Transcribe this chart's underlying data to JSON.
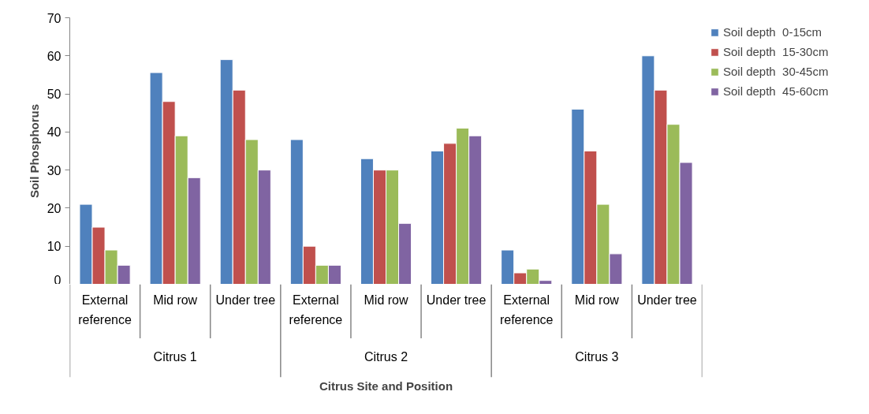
{
  "chart_data": {
    "type": "bar",
    "categories": [
      "External reference",
      "Mid row",
      "Under tree",
      "External reference",
      "Mid row",
      "Under tree",
      "External reference",
      "Mid row",
      "Under tree"
    ],
    "series": [
      {
        "name": "Soil depth  0-15cm",
        "color": "#4f81bd",
        "values": [
          21,
          55.6,
          59,
          38,
          33,
          35,
          9,
          46,
          60
        ]
      },
      {
        "name": "Soil depth  15-30cm",
        "color": "#c0504d",
        "values": [
          15,
          48,
          51,
          10,
          30,
          37,
          3,
          35,
          51
        ]
      },
      {
        "name": "Soil depth  30-45cm",
        "color": "#9bbb59",
        "values": [
          9,
          39,
          38,
          5,
          30,
          41,
          4,
          21,
          42
        ]
      },
      {
        "name": "Soil depth  45-60cm",
        "color": "#8064a2",
        "values": [
          5,
          28,
          30,
          5,
          16,
          39,
          1,
          8,
          32
        ]
      }
    ],
    "ylim": [
      0,
      70
    ],
    "yticks": [
      0,
      10,
      20,
      30,
      40,
      50,
      60,
      70
    ],
    "ylabel": "Soil Phosphorus",
    "xlabel": "Citrus Site and Position",
    "annotations": [
      "Citrus 1",
      "Citrus 2",
      "Citrus 3"
    ],
    "legend": "right",
    "grid": false
  }
}
